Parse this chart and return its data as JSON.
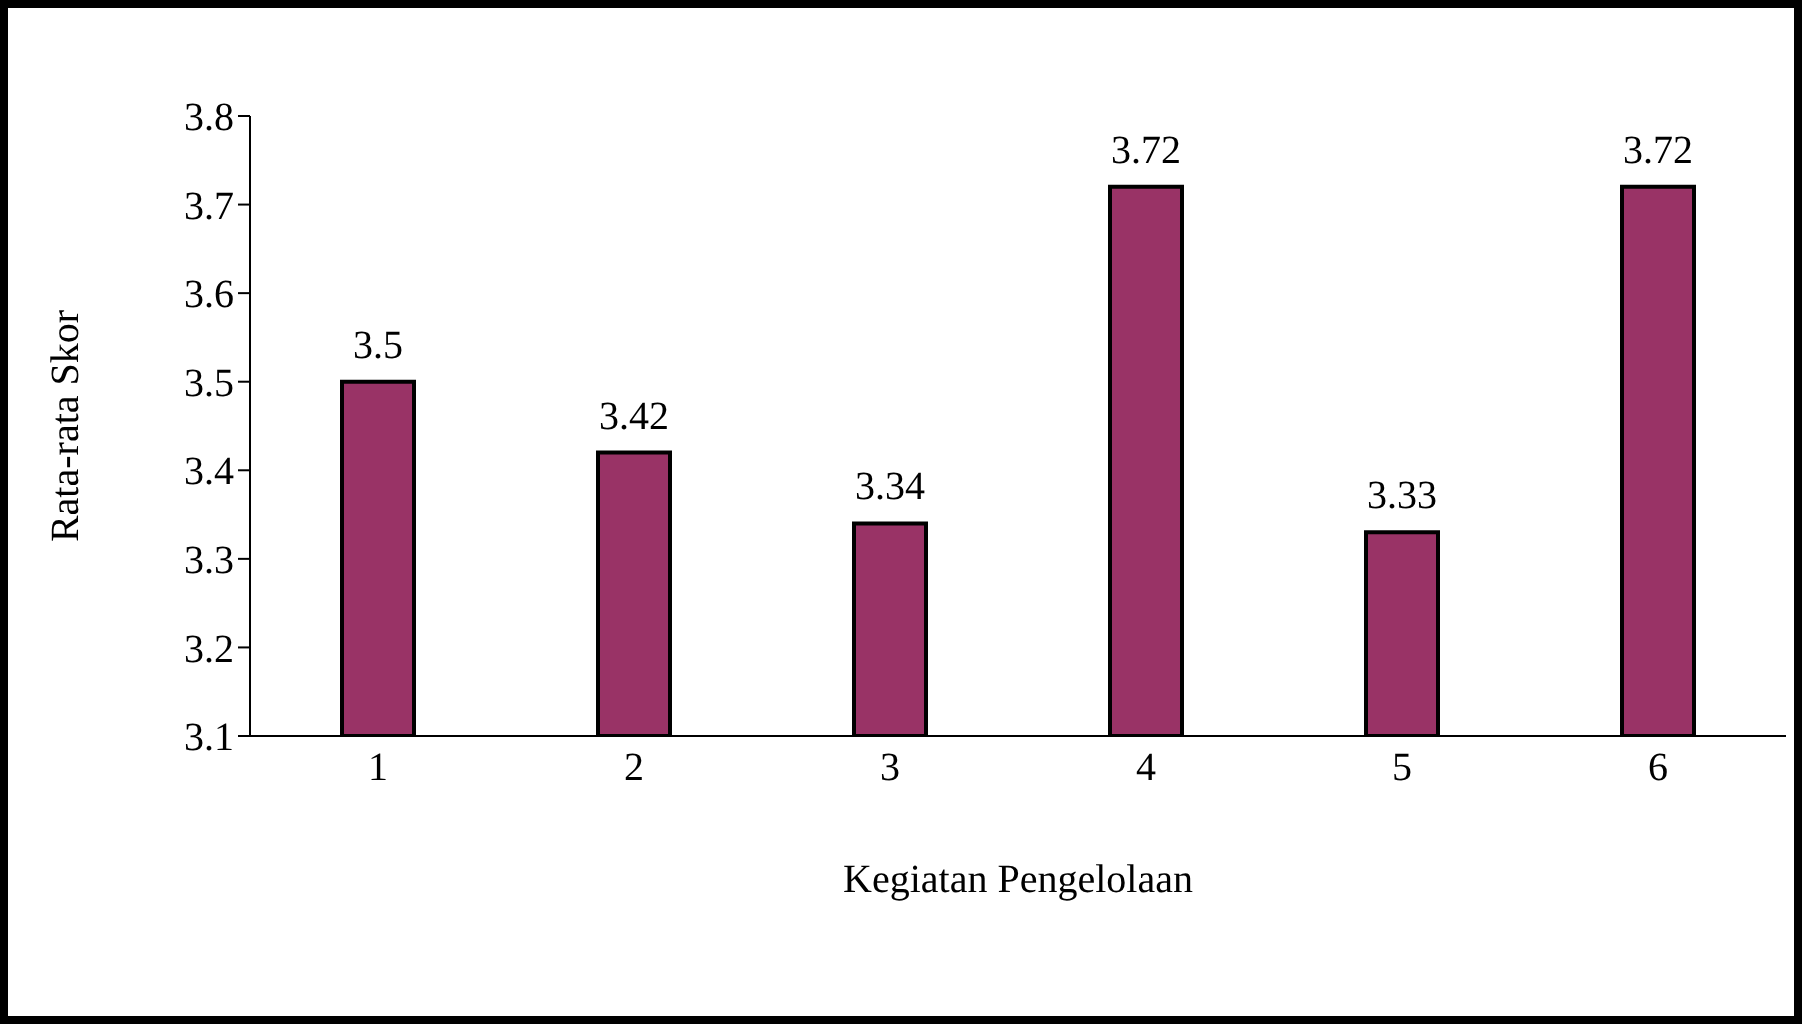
{
  "chart_data": {
    "type": "bar",
    "xlabel": "Kegiatan Pengelolaan",
    "ylabel": "Rata-rata  Skor",
    "categories": [
      "1",
      "2",
      "3",
      "4",
      "5",
      "6"
    ],
    "values": [
      3.5,
      3.42,
      3.34,
      3.72,
      3.33,
      3.72
    ],
    "color": "#993366",
    "ylim": [
      3.1,
      3.8
    ],
    "yticks": [
      3.1,
      3.2,
      3.3,
      3.4,
      3.5,
      3.6,
      3.7,
      3.8
    ],
    "data_labels": true,
    "grid": false,
    "legend": false
  }
}
